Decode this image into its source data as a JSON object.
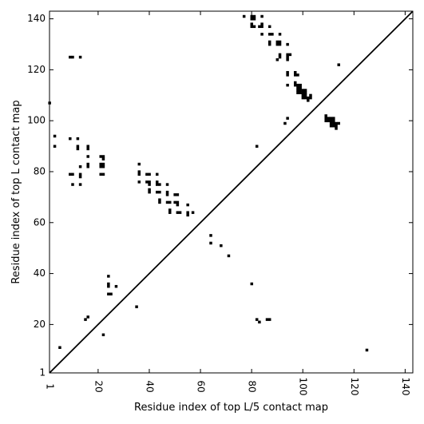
{
  "chart_data": {
    "type": "scatter",
    "title": "",
    "xlabel": "Residue index of top L/5 contact map",
    "ylabel": "Residue index of top L contact map",
    "xlim": [
      1,
      143
    ],
    "ylim": [
      1,
      143
    ],
    "grid": false,
    "legend": "none",
    "marker": "square",
    "marker_color": "#000000",
    "x_ticks": [
      1,
      20,
      40,
      60,
      80,
      100,
      120,
      140
    ],
    "x_tick_labels": [
      "1",
      "20",
      "40",
      "60",
      "80",
      "100",
      "120",
      "140"
    ],
    "y_ticks": [
      1,
      20,
      40,
      60,
      80,
      100,
      120,
      140
    ],
    "y_tick_labels": [
      "1",
      "20",
      "40",
      "60",
      "80",
      "100",
      "120",
      "140"
    ],
    "diagonal": {
      "from": [
        1,
        1
      ],
      "to": [
        143,
        143
      ],
      "color": "#000000"
    },
    "series": [
      {
        "region": "upper-left (top L contacts)",
        "points": [
          [
            1,
            107
          ],
          [
            3,
            94
          ],
          [
            3,
            90
          ],
          [
            9,
            125
          ],
          [
            10,
            125
          ],
          [
            13,
            125
          ],
          [
            9,
            93
          ],
          [
            9,
            79
          ],
          [
            10,
            79
          ],
          [
            10,
            75
          ],
          [
            12,
            93
          ],
          [
            12,
            90
          ],
          [
            12,
            89
          ],
          [
            13,
            82
          ],
          [
            13,
            79
          ],
          [
            13,
            78
          ],
          [
            13,
            75
          ],
          [
            16,
            90
          ],
          [
            16,
            89
          ],
          [
            16,
            86
          ],
          [
            16,
            83
          ],
          [
            16,
            82
          ],
          [
            21,
            86
          ],
          [
            22,
            86
          ],
          [
            22,
            85
          ],
          [
            21,
            83
          ],
          [
            22,
            83
          ],
          [
            21,
            82
          ],
          [
            22,
            82
          ],
          [
            21,
            79
          ],
          [
            22,
            79
          ],
          [
            36,
            83
          ],
          [
            36,
            80
          ],
          [
            36,
            79
          ],
          [
            36,
            76
          ],
          [
            39,
            79
          ],
          [
            40,
            79
          ],
          [
            39,
            76
          ],
          [
            40,
            76
          ],
          [
            40,
            75
          ],
          [
            40,
            73
          ],
          [
            40,
            72
          ],
          [
            43,
            79
          ],
          [
            43,
            76
          ],
          [
            43,
            75
          ],
          [
            44,
            75
          ],
          [
            43,
            72
          ],
          [
            44,
            72
          ],
          [
            44,
            69
          ],
          [
            44,
            68
          ],
          [
            47,
            75
          ],
          [
            47,
            72
          ],
          [
            47,
            71
          ],
          [
            47,
            68
          ],
          [
            48,
            68
          ],
          [
            48,
            65
          ],
          [
            48,
            64
          ],
          [
            50,
            71
          ],
          [
            51,
            71
          ],
          [
            50,
            68
          ],
          [
            51,
            68
          ],
          [
            51,
            67
          ],
          [
            51,
            64
          ],
          [
            52,
            64
          ],
          [
            55,
            67
          ],
          [
            55,
            64
          ],
          [
            55,
            63
          ],
          [
            57,
            64
          ],
          [
            77,
            141
          ],
          [
            80,
            141
          ],
          [
            81,
            141
          ],
          [
            80,
            140
          ],
          [
            81,
            140
          ],
          [
            84,
            141
          ],
          [
            80,
            138
          ],
          [
            80,
            137
          ],
          [
            81,
            137
          ],
          [
            83,
            137
          ],
          [
            84,
            138
          ],
          [
            84,
            137
          ],
          [
            87,
            137
          ],
          [
            84,
            134
          ],
          [
            87,
            134
          ],
          [
            88,
            134
          ],
          [
            91,
            134
          ],
          [
            87,
            131
          ],
          [
            87,
            130
          ],
          [
            90,
            131
          ],
          [
            91,
            131
          ],
          [
            90,
            130
          ],
          [
            91,
            130
          ],
          [
            94,
            130
          ],
          [
            91,
            126
          ],
          [
            94,
            126
          ],
          [
            95,
            126
          ],
          [
            91,
            125
          ],
          [
            94,
            125
          ],
          [
            90,
            124
          ],
          [
            94,
            124
          ],
          [
            94,
            119
          ],
          [
            94,
            118
          ],
          [
            97,
            119
          ],
          [
            97,
            118
          ],
          [
            98,
            118
          ],
          [
            94,
            114
          ],
          [
            97,
            115
          ],
          [
            97,
            114
          ],
          [
            98,
            114
          ],
          [
            98,
            113
          ],
          [
            99,
            114
          ],
          [
            99,
            113
          ],
          [
            98,
            112
          ],
          [
            99,
            112
          ],
          [
            98,
            111
          ],
          [
            99,
            111
          ],
          [
            100,
            112
          ],
          [
            101,
            112
          ],
          [
            100,
            111
          ],
          [
            101,
            111
          ],
          [
            100,
            110
          ],
          [
            101,
            110
          ],
          [
            100,
            109
          ],
          [
            101,
            109
          ],
          [
            102,
            109
          ],
          [
            103,
            110
          ],
          [
            103,
            109
          ],
          [
            102,
            108
          ],
          [
            94,
            101
          ],
          [
            93,
            99
          ],
          [
            109,
            102
          ],
          [
            109,
            101
          ],
          [
            110,
            101
          ],
          [
            111,
            101
          ],
          [
            112,
            101
          ],
          [
            109,
            100
          ],
          [
            110,
            100
          ],
          [
            111,
            100
          ],
          [
            112,
            100
          ],
          [
            111,
            99
          ],
          [
            112,
            99
          ],
          [
            113,
            99
          ],
          [
            114,
            99
          ],
          [
            111,
            98
          ],
          [
            112,
            98
          ],
          [
            113,
            98
          ],
          [
            113,
            97
          ],
          [
            114,
            122
          ]
        ]
      },
      {
        "region": "lower-right (top L/5 contacts)",
        "points": [
          [
            5,
            11
          ],
          [
            15,
            22
          ],
          [
            16,
            23
          ],
          [
            22,
            16
          ],
          [
            24,
            39
          ],
          [
            24,
            36
          ],
          [
            24,
            35
          ],
          [
            24,
            32
          ],
          [
            25,
            32
          ],
          [
            27,
            35
          ],
          [
            35,
            27
          ],
          [
            64,
            55
          ],
          [
            64,
            52
          ],
          [
            68,
            51
          ],
          [
            71,
            47
          ],
          [
            80,
            36
          ],
          [
            82,
            90
          ],
          [
            82,
            22
          ],
          [
            83,
            21
          ],
          [
            86,
            22
          ],
          [
            87,
            22
          ],
          [
            125,
            10
          ]
        ]
      }
    ]
  }
}
